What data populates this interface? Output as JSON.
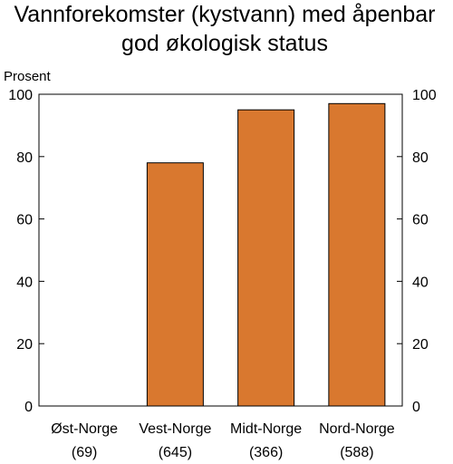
{
  "chart_data": {
    "type": "bar",
    "title_lines": [
      "Vannforekomster (kystvann) med åpenbar",
      "god økologisk status"
    ],
    "ylabel": "Prosent",
    "categories": [
      "Øst-Norge",
      "Vest-Norge",
      "Midt-Norge",
      "Nord-Norge"
    ],
    "category_counts": [
      "(69)",
      "(645)",
      "(366)",
      "(588)"
    ],
    "values": [
      0,
      78,
      95,
      97
    ],
    "ylim": [
      0,
      100
    ],
    "yticks": [
      0,
      20,
      40,
      60,
      80,
      100
    ],
    "y_axis_both_sides": true,
    "grid": false,
    "bar_color": "#D9782F",
    "bar_outline": "#000000"
  }
}
